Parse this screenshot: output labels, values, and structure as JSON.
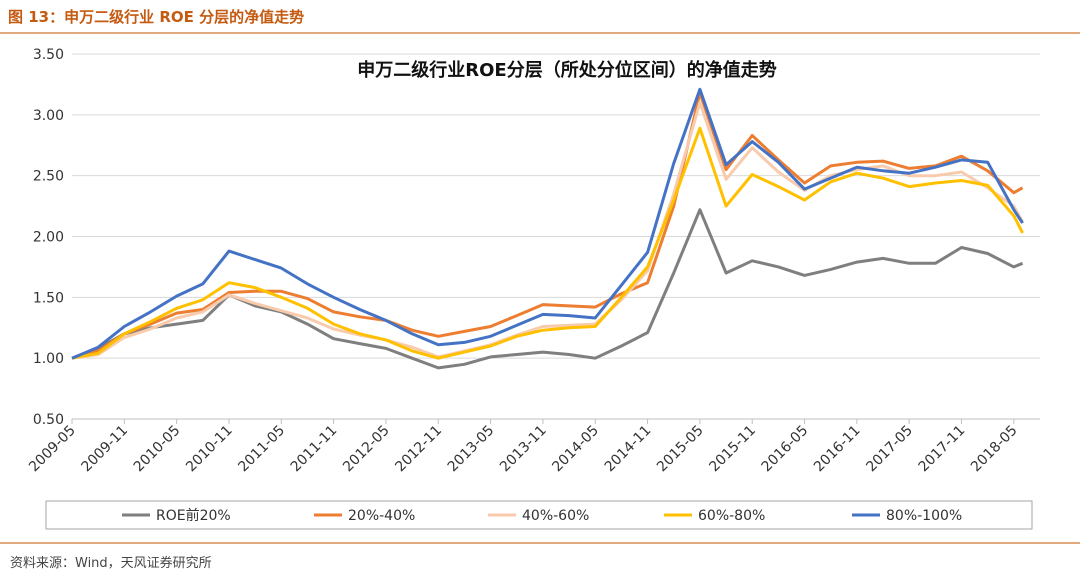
{
  "header": {
    "caption": "图 13：申万二级行业 ROE 分层的净值走势"
  },
  "footer": {
    "source": "资料来源：Wind，天风证券研究所"
  },
  "chart_data": {
    "type": "line",
    "title": "申万二级行业ROE分层（所处分位区间）的净值走势",
    "xlabel": "",
    "ylabel": "",
    "ylim": [
      0.5,
      3.5
    ],
    "yticks": [
      "0.50",
      "1.00",
      "1.50",
      "2.00",
      "2.50",
      "3.00",
      "3.50"
    ],
    "grid": true,
    "legend_position": "bottom",
    "x": [
      "2009-05",
      "2009-08",
      "2009-11",
      "2010-02",
      "2010-05",
      "2010-08",
      "2010-11",
      "2011-02",
      "2011-05",
      "2011-08",
      "2011-11",
      "2012-02",
      "2012-05",
      "2012-08",
      "2012-11",
      "2013-02",
      "2013-05",
      "2013-08",
      "2013-11",
      "2014-02",
      "2014-05",
      "2014-08",
      "2014-11",
      "2015-02",
      "2015-05",
      "2015-08",
      "2015-11",
      "2016-02",
      "2016-05",
      "2016-08",
      "2016-11",
      "2017-02",
      "2017-05",
      "2017-08",
      "2017-11",
      "2018-02",
      "2018-05",
      "2018-06"
    ],
    "x_tick_labels": [
      "2009-05",
      "2009-11",
      "2010-05",
      "2010-11",
      "2011-05",
      "2011-11",
      "2012-05",
      "2012-11",
      "2013-05",
      "2013-11",
      "2014-05",
      "2014-11",
      "2015-05",
      "2015-11",
      "2016-05",
      "2016-11",
      "2017-05",
      "2017-11",
      "2018-05"
    ],
    "series": [
      {
        "name": "ROE前20%",
        "color": "#7f7f7f",
        "values": [
          1.0,
          1.08,
          1.2,
          1.25,
          1.28,
          1.31,
          1.52,
          1.43,
          1.38,
          1.28,
          1.16,
          1.12,
          1.08,
          1.0,
          0.92,
          0.95,
          1.01,
          1.03,
          1.05,
          1.03,
          1.0,
          1.1,
          1.21,
          1.7,
          2.22,
          1.7,
          1.8,
          1.75,
          1.68,
          1.73,
          1.79,
          1.82,
          1.78,
          1.78,
          1.91,
          1.86,
          1.75,
          1.78
        ]
      },
      {
        "name": "20%-40%",
        "color": "#ed7d31",
        "values": [
          1.0,
          1.06,
          1.2,
          1.28,
          1.37,
          1.4,
          1.54,
          1.55,
          1.55,
          1.49,
          1.38,
          1.34,
          1.31,
          1.23,
          1.18,
          1.22,
          1.26,
          1.35,
          1.44,
          1.43,
          1.42,
          1.53,
          1.62,
          2.25,
          3.18,
          2.55,
          2.83,
          2.63,
          2.44,
          2.58,
          2.61,
          2.62,
          2.56,
          2.58,
          2.66,
          2.54,
          2.36,
          2.4
        ]
      },
      {
        "name": "40%-60%",
        "color": "#f8cbad",
        "values": [
          1.0,
          1.03,
          1.17,
          1.24,
          1.33,
          1.38,
          1.52,
          1.45,
          1.39,
          1.33,
          1.24,
          1.19,
          1.15,
          1.09,
          1.01,
          1.06,
          1.11,
          1.19,
          1.26,
          1.27,
          1.28,
          1.48,
          1.72,
          2.35,
          3.1,
          2.47,
          2.73,
          2.53,
          2.38,
          2.5,
          2.55,
          2.58,
          2.5,
          2.5,
          2.53,
          2.4,
          2.25,
          2.12
        ]
      },
      {
        "name": "60%-80%",
        "color": "#ffc000",
        "values": [
          1.0,
          1.04,
          1.2,
          1.3,
          1.41,
          1.48,
          1.62,
          1.58,
          1.5,
          1.41,
          1.28,
          1.2,
          1.15,
          1.06,
          1.0,
          1.05,
          1.1,
          1.18,
          1.23,
          1.25,
          1.26,
          1.5,
          1.75,
          2.3,
          2.89,
          2.25,
          2.51,
          2.41,
          2.3,
          2.45,
          2.52,
          2.48,
          2.41,
          2.44,
          2.46,
          2.42,
          2.17,
          2.03
        ]
      },
      {
        "name": "80%-100%",
        "color": "#4472c4",
        "values": [
          1.0,
          1.09,
          1.26,
          1.38,
          1.51,
          1.61,
          1.88,
          1.81,
          1.74,
          1.61,
          1.5,
          1.4,
          1.31,
          1.2,
          1.11,
          1.13,
          1.18,
          1.27,
          1.36,
          1.35,
          1.33,
          1.6,
          1.87,
          2.6,
          3.21,
          2.59,
          2.78,
          2.61,
          2.39,
          2.48,
          2.57,
          2.54,
          2.52,
          2.57,
          2.63,
          2.61,
          2.22,
          2.11
        ]
      }
    ]
  }
}
